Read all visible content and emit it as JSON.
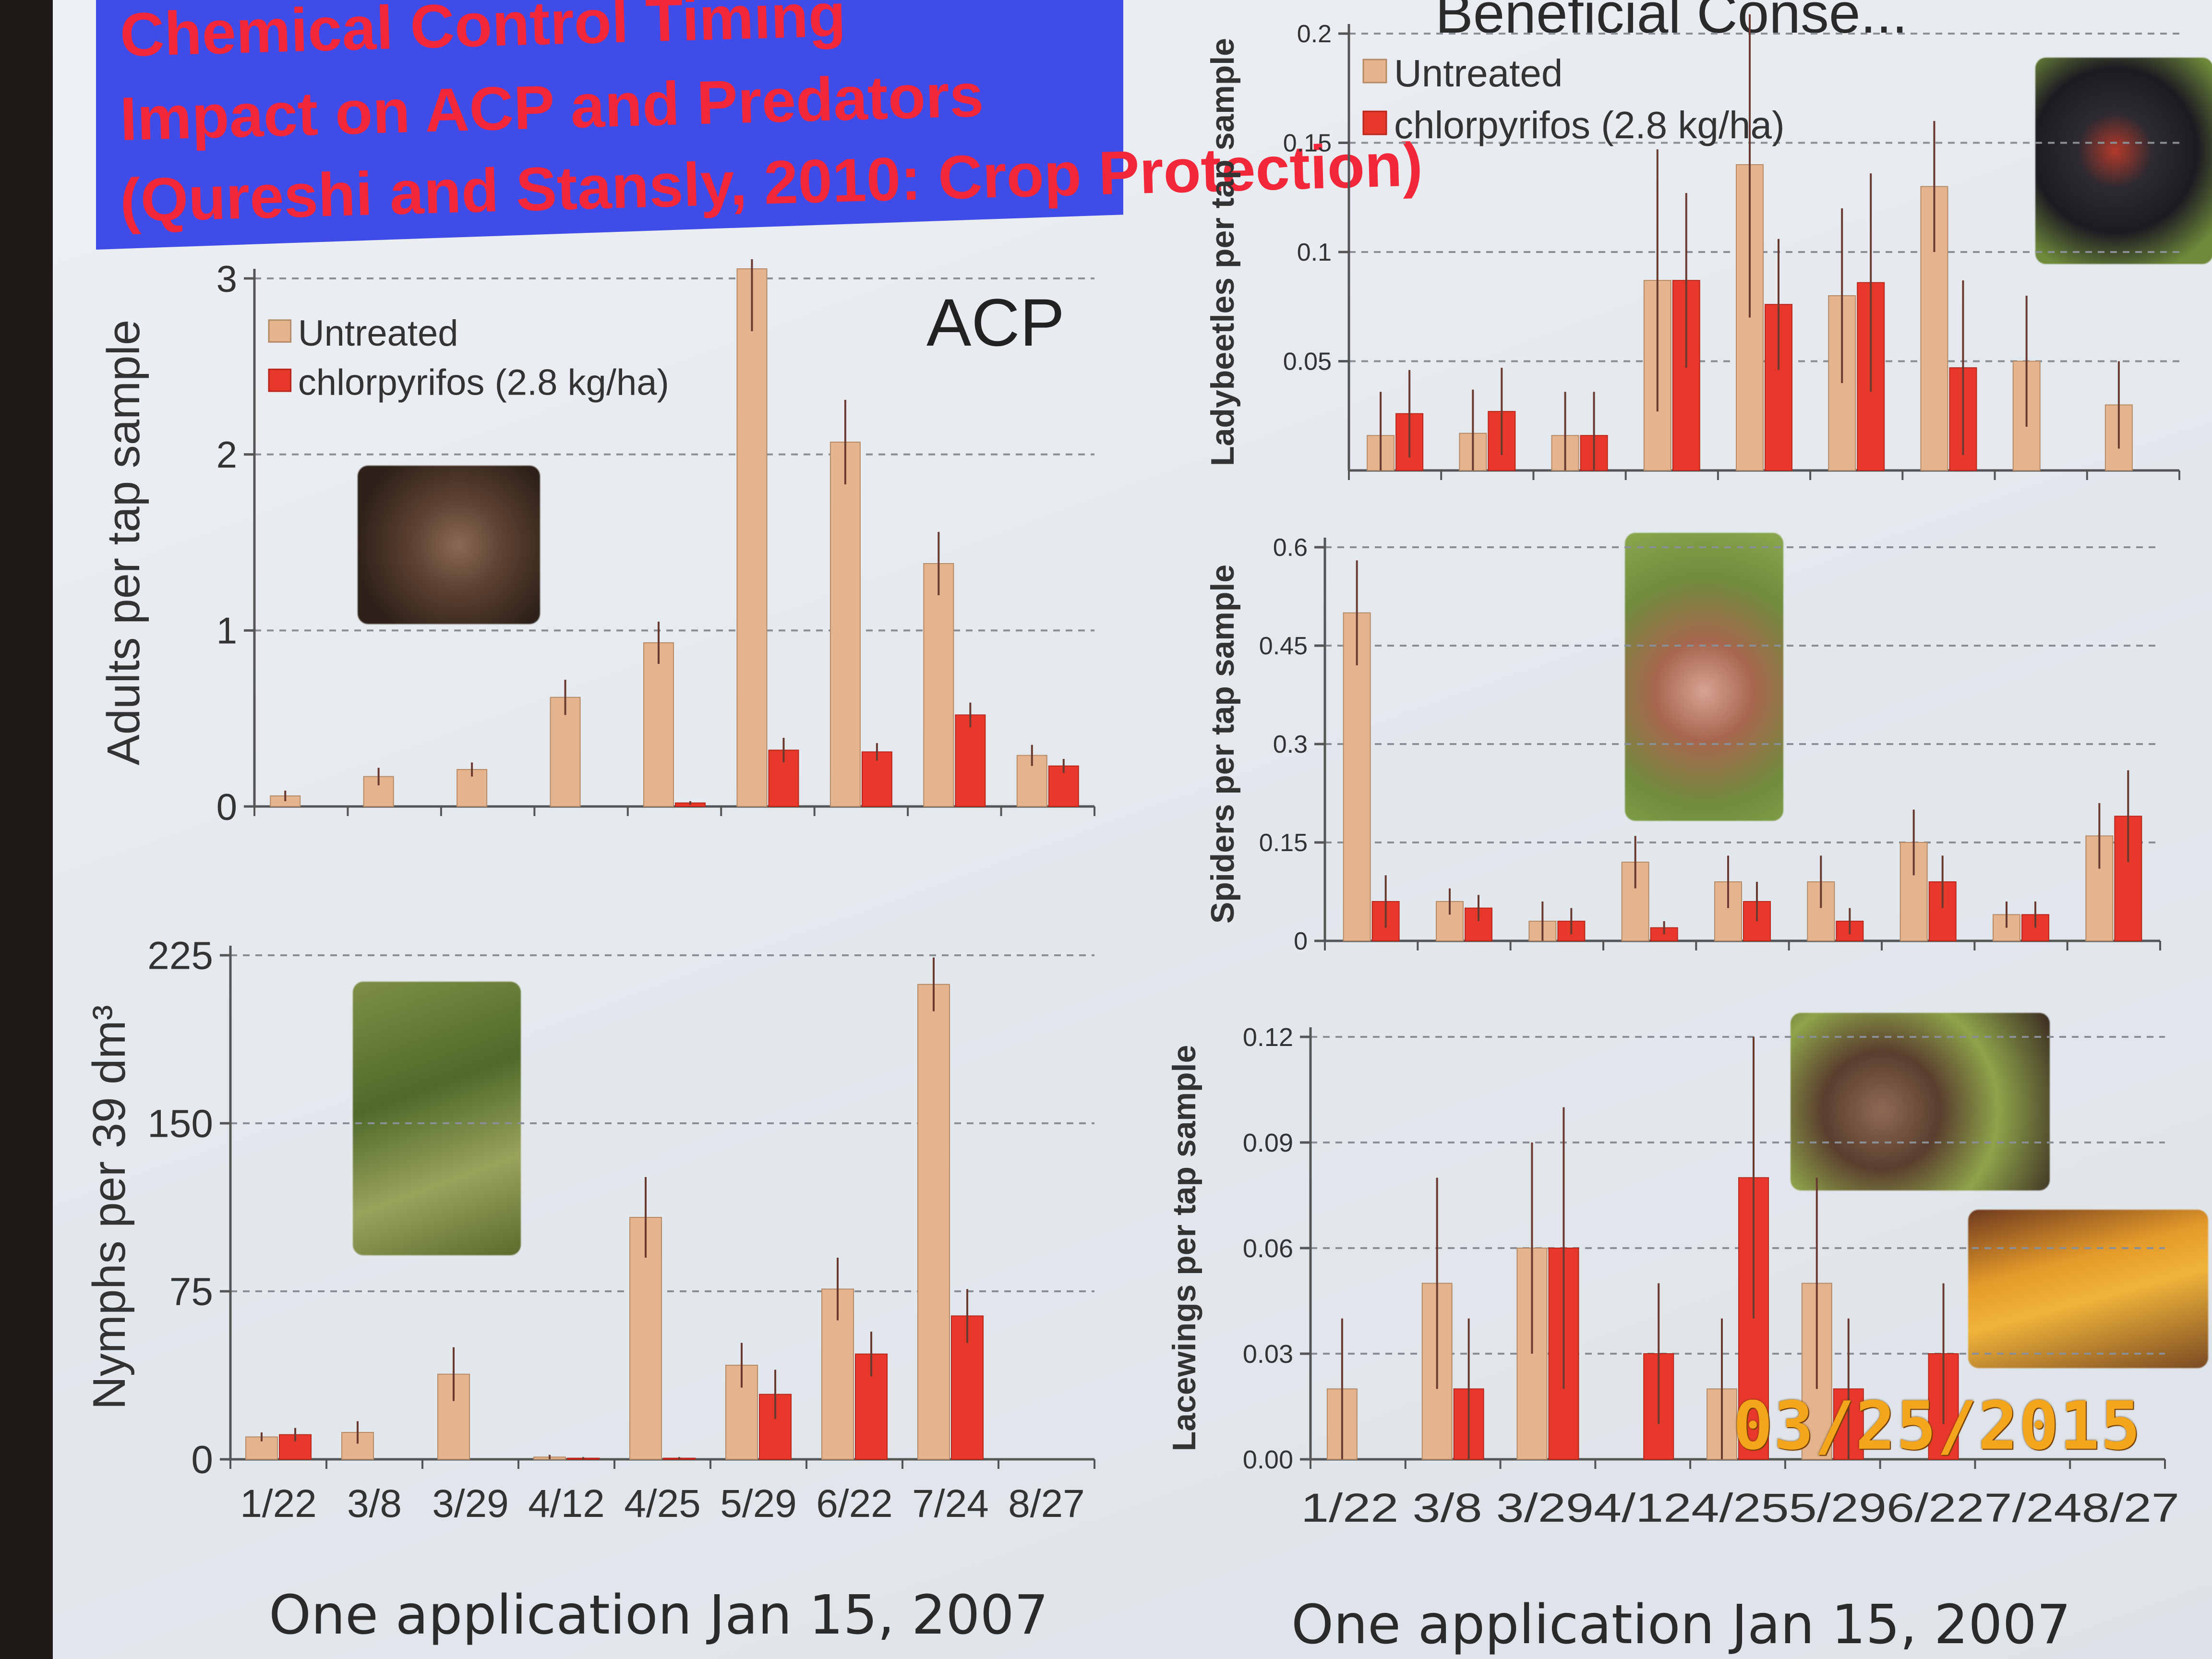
{
  "slide": {
    "title_lines": [
      "Chemical Control Timing",
      "Impact on ACP and Predators",
      "(Qureshi and Stansly, 2010: Crop Protection)"
    ],
    "right_top_title": "Beneficial Conse...",
    "footers": [
      "One application Jan 15, 2007",
      "One application Jan 15, 2007"
    ],
    "date_stamp": "03/25/2015"
  },
  "colors": {
    "untreated": "#e3b48d",
    "chlorpyrifos": "#e8382b",
    "banner": "#3f4ce8",
    "title_text": "#f2283a",
    "stamp": "#f3a51b"
  },
  "photos": [
    "psyllid-photo",
    "nymph-photo",
    "ladybeetle-photo",
    "spider-photo",
    "lacewing-photo",
    "lacewing-photo-2"
  ],
  "chart_data": [
    {
      "id": "acp-adults",
      "type": "bar",
      "title": "ACP",
      "ylabel": "Adults per tap sample",
      "ylim": [
        0,
        3
      ],
      "yticks": [
        0,
        1,
        2,
        3
      ],
      "ytick_labels": [
        "0",
        "1",
        "2",
        "3"
      ],
      "categories": [
        "1/22",
        "3/8",
        "3/29",
        "4/12",
        "4/25",
        "5/29",
        "6/22",
        "7/24",
        "8/27"
      ],
      "show_xlabels": false,
      "legend": "top-left",
      "grid": true,
      "series": [
        {
          "name": "Untreated",
          "values": [
            0.06,
            0.17,
            0.21,
            0.62,
            0.93,
            3.1,
            2.07,
            1.38,
            0.29
          ],
          "errors": [
            0.03,
            0.05,
            0.04,
            0.1,
            0.12,
            0.4,
            0.24,
            0.18,
            0.06
          ]
        },
        {
          "name": "chlorpyrifos (2.8 kg/ha)",
          "values": [
            0,
            0,
            0,
            0,
            0.02,
            0.32,
            0.31,
            0.52,
            0.23
          ],
          "errors": [
            0,
            0,
            0,
            0,
            0.01,
            0.07,
            0.05,
            0.07,
            0.04
          ]
        }
      ]
    },
    {
      "id": "acp-nymphs",
      "type": "bar",
      "ylabel": "Nymphs per 39 dm³",
      "ylim": [
        0,
        225
      ],
      "yticks": [
        0,
        75,
        150,
        225
      ],
      "ytick_labels": [
        "0",
        "75",
        "150",
        "225"
      ],
      "categories": [
        "1/22",
        "3/8",
        "3/29",
        "4/12",
        "4/25",
        "5/29",
        "6/22",
        "7/24",
        "8/27"
      ],
      "show_xlabels": true,
      "grid": true,
      "series": [
        {
          "name": "Untreated",
          "values": [
            10,
            12,
            38,
            1,
            108,
            42,
            76,
            212,
            0
          ],
          "errors": [
            2,
            5,
            12,
            1,
            18,
            10,
            14,
            12,
            0
          ]
        },
        {
          "name": "chlorpyrifos (2.8 kg/ha)",
          "values": [
            11,
            0,
            0,
            0.5,
            0.5,
            29,
            47,
            64,
            0
          ],
          "errors": [
            3,
            0,
            0,
            0.5,
            0.5,
            11,
            10,
            12,
            0
          ]
        }
      ]
    },
    {
      "id": "ladybeetles",
      "type": "bar",
      "ylabel": "Ladybeetles per tap sample",
      "ylim": [
        0,
        0.2
      ],
      "yticks": [
        0.05,
        0.1,
        0.15,
        0.2
      ],
      "ytick_labels": [
        "0.05",
        "0.1",
        "0.15",
        "0.2"
      ],
      "categories": [
        "1/22",
        "3/8",
        "3/29",
        "4/12",
        "4/25",
        "5/29",
        "6/22",
        "7/24",
        "8/27"
      ],
      "show_xlabels": false,
      "legend": "top-left",
      "grid": true,
      "series": [
        {
          "name": "Untreated",
          "values": [
            0.016,
            0.017,
            0.016,
            0.087,
            0.14,
            0.08,
            0.13,
            0.05,
            0.03
          ],
          "errors": [
            0.02,
            0.02,
            0.02,
            0.06,
            0.07,
            0.04,
            0.03,
            0.03,
            0.02
          ]
        },
        {
          "name": "chlorpyrifos (2.8 kg/ha)",
          "values": [
            0.026,
            0.027,
            0.016,
            0.087,
            0.076,
            0.086,
            0.047,
            0,
            0
          ],
          "errors": [
            0.02,
            0.02,
            0.02,
            0.04,
            0.03,
            0.05,
            0.04,
            0,
            0
          ]
        }
      ]
    },
    {
      "id": "spiders",
      "type": "bar",
      "ylabel": "Spiders per tap sample",
      "ylim": [
        0,
        0.6
      ],
      "yticks": [
        0,
        0.15,
        0.3,
        0.45,
        0.6
      ],
      "ytick_labels": [
        "0",
        "0.15",
        "0.3",
        "0.45",
        "0.6"
      ],
      "categories": [
        "1/22",
        "3/8",
        "3/29",
        "4/12",
        "4/25",
        "5/29",
        "6/22",
        "7/24",
        "8/27"
      ],
      "show_xlabels": false,
      "grid": true,
      "series": [
        {
          "name": "Untreated",
          "values": [
            0.5,
            0.06,
            0.03,
            0.12,
            0.09,
            0.09,
            0.15,
            0.04,
            0.16
          ],
          "errors": [
            0.08,
            0.02,
            0.03,
            0.04,
            0.04,
            0.04,
            0.05,
            0.02,
            0.05
          ]
        },
        {
          "name": "chlorpyrifos (2.8 kg/ha)",
          "values": [
            0.06,
            0.05,
            0.03,
            0.02,
            0.06,
            0.03,
            0.09,
            0.04,
            0.19
          ],
          "errors": [
            0.04,
            0.02,
            0.02,
            0.01,
            0.03,
            0.02,
            0.04,
            0.02,
            0.07
          ]
        }
      ]
    },
    {
      "id": "lacewings",
      "type": "bar",
      "ylabel": "Lacewings per tap sample",
      "ylim": [
        0,
        0.12
      ],
      "yticks": [
        0,
        0.03,
        0.06,
        0.09,
        0.12
      ],
      "ytick_labels": [
        "0.00",
        "0.03",
        "0.06",
        "0.09",
        "0.12"
      ],
      "categories": [
        "1/22",
        "3/8",
        "3/29",
        "4/12",
        "4/25",
        "5/29",
        "6/22",
        "7/24",
        "8/27"
      ],
      "tick_text": "1/22 3/8 3/294/124/255/296/227/248/27",
      "show_xlabels": true,
      "grid": true,
      "series": [
        {
          "name": "Untreated",
          "values": [
            0.02,
            0.05,
            0.06,
            0,
            0.02,
            0.05,
            0,
            0,
            0
          ],
          "errors": [
            0.02,
            0.03,
            0.03,
            0,
            0.02,
            0.03,
            0,
            0,
            0
          ]
        },
        {
          "name": "chlorpyrifos (2.8 kg/ha)",
          "values": [
            0,
            0.02,
            0.06,
            0.03,
            0.08,
            0.02,
            0.03,
            0,
            0
          ],
          "errors": [
            0,
            0.02,
            0.04,
            0.02,
            0.04,
            0.02,
            0.02,
            0,
            0
          ]
        }
      ]
    }
  ]
}
